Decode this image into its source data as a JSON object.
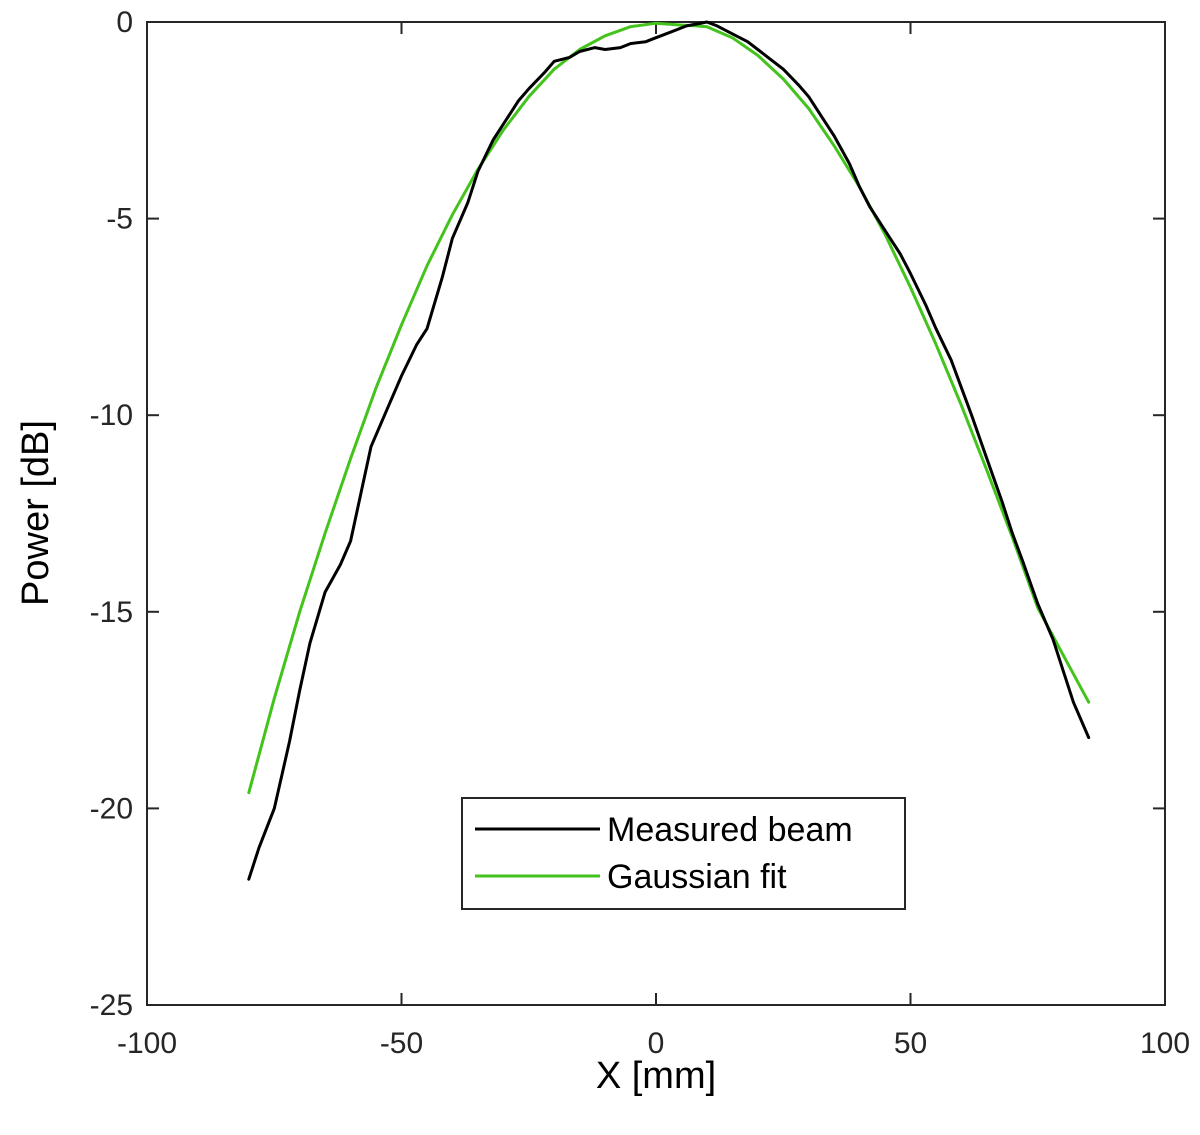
{
  "chart_data": {
    "type": "line",
    "title": "",
    "xlabel": "X [mm]",
    "ylabel": "Power [dB]",
    "xlim": [
      -100,
      100
    ],
    "ylim": [
      -25,
      0
    ],
    "xticks": [
      -100,
      -50,
      0,
      50,
      100
    ],
    "yticks": [
      0,
      -5,
      -10,
      -15,
      -20,
      -25
    ],
    "xtick_labels": [
      "-100",
      "-50",
      "0",
      "50",
      "100"
    ],
    "ytick_labels": [
      "0",
      "-5",
      "-10",
      "-15",
      "-20",
      "-25"
    ],
    "grid": false,
    "legend_position": "lower-center",
    "series": [
      {
        "name": "Measured beam",
        "color": "#000000",
        "x": [
          -80,
          -78,
          -75,
          -72,
          -70,
          -68,
          -65,
          -62,
          -60,
          -58,
          -56,
          -53,
          -50,
          -47,
          -45,
          -42,
          -40,
          -37,
          -35,
          -32,
          -30,
          -27,
          -25,
          -22,
          -20,
          -17,
          -15,
          -12,
          -10,
          -7,
          -5,
          -2,
          0,
          2,
          4,
          6,
          8,
          10,
          12,
          15,
          18,
          20,
          22,
          25,
          28,
          30,
          33,
          35,
          38,
          40,
          42,
          45,
          48,
          50,
          53,
          55,
          58,
          60,
          62,
          65,
          68,
          70,
          72,
          75,
          78,
          80,
          82,
          85
        ],
        "y": [
          -21.8,
          -21.0,
          -20.0,
          -18.3,
          -17.0,
          -15.8,
          -14.5,
          -13.8,
          -13.2,
          -12.0,
          -10.8,
          -9.9,
          -9.0,
          -8.2,
          -7.8,
          -6.5,
          -5.5,
          -4.6,
          -3.8,
          -3.0,
          -2.6,
          -2.0,
          -1.7,
          -1.3,
          -1.0,
          -0.9,
          -0.75,
          -0.65,
          -0.7,
          -0.65,
          -0.55,
          -0.5,
          -0.4,
          -0.3,
          -0.2,
          -0.1,
          -0.05,
          0.0,
          -0.1,
          -0.3,
          -0.5,
          -0.7,
          -0.9,
          -1.2,
          -1.6,
          -1.9,
          -2.5,
          -2.9,
          -3.6,
          -4.2,
          -4.7,
          -5.3,
          -5.9,
          -6.4,
          -7.2,
          -7.8,
          -8.6,
          -9.3,
          -10.0,
          -11.1,
          -12.2,
          -13.0,
          -13.7,
          -14.8,
          -15.7,
          -16.5,
          -17.3,
          -18.2
        ]
      },
      {
        "name": "Gaussian fit",
        "color": "#44c31d",
        "x": [
          -80,
          -75,
          -70,
          -65,
          -60,
          -55,
          -50,
          -45,
          -40,
          -35,
          -30,
          -25,
          -20,
          -15,
          -10,
          -5,
          0,
          5,
          8,
          10,
          15,
          20,
          25,
          30,
          35,
          40,
          45,
          50,
          55,
          60,
          65,
          70,
          75,
          80,
          85
        ],
        "y": [
          -19.6,
          -17.2,
          -15.0,
          -13.0,
          -11.1,
          -9.3,
          -7.7,
          -6.2,
          -4.9,
          -3.75,
          -2.75,
          -1.9,
          -1.2,
          -0.7,
          -0.35,
          -0.12,
          -0.03,
          -0.08,
          -0.1,
          -0.12,
          -0.4,
          -0.85,
          -1.45,
          -2.2,
          -3.15,
          -4.2,
          -5.4,
          -6.75,
          -8.2,
          -9.75,
          -11.4,
          -13.1,
          -14.9,
          -16.1,
          -17.3
        ]
      }
    ]
  }
}
